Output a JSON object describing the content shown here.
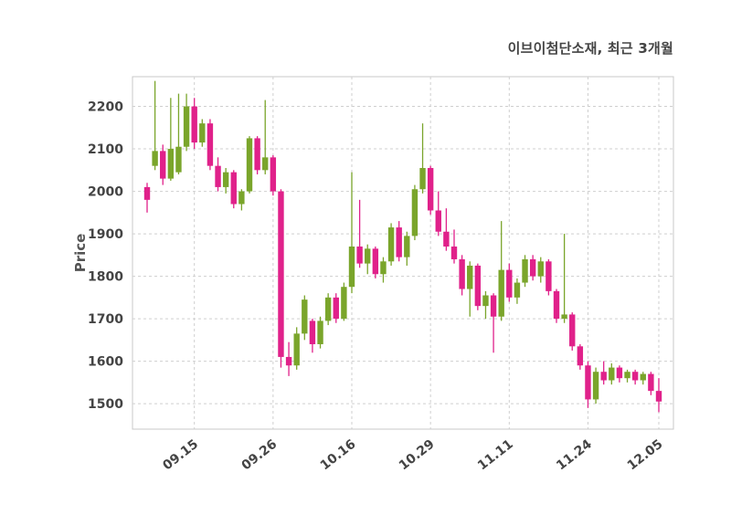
{
  "chart_data": {
    "type": "candlestick",
    "title": "이브이첨단소재, 최근 3개월",
    "xlabel": "",
    "ylabel": "Price",
    "ylim": [
      1440,
      2270
    ],
    "grid": true,
    "legend": "none",
    "yticks": [
      1500,
      1600,
      1700,
      1800,
      1900,
      2000,
      2100,
      2200
    ],
    "xticks": [
      {
        "index": 6,
        "label": "09.15"
      },
      {
        "index": 16,
        "label": "09.26"
      },
      {
        "index": 26,
        "label": "10.16"
      },
      {
        "index": 36,
        "label": "10.29"
      },
      {
        "index": 46,
        "label": "11.11"
      },
      {
        "index": 56,
        "label": "11.24"
      },
      {
        "index": 65,
        "label": "12.05"
      }
    ],
    "up_color": "#7aa52b",
    "down_color": "#e0218a",
    "grid_color": "#cfcfcf",
    "border_color": "#c8c8c8",
    "tick_color": "#444444",
    "candles_format": "[open, high, low, close]",
    "candles": [
      [
        2010,
        2020,
        1950,
        1980
      ],
      [
        2060,
        2260,
        2050,
        2095
      ],
      [
        2095,
        2110,
        2015,
        2030
      ],
      [
        2030,
        2220,
        2025,
        2100
      ],
      [
        2045,
        2230,
        2040,
        2105
      ],
      [
        2105,
        2230,
        2095,
        2200
      ],
      [
        2200,
        2220,
        2100,
        2115
      ],
      [
        2115,
        2170,
        2105,
        2160
      ],
      [
        2160,
        2170,
        2050,
        2060
      ],
      [
        2060,
        2080,
        2000,
        2010
      ],
      [
        2010,
        2055,
        1995,
        2045
      ],
      [
        2045,
        2050,
        1960,
        1970
      ],
      [
        1970,
        2005,
        1955,
        2000
      ],
      [
        2000,
        2130,
        1995,
        2125
      ],
      [
        2125,
        2130,
        2040,
        2050
      ],
      [
        2050,
        2215,
        2040,
        2080
      ],
      [
        2080,
        2085,
        1990,
        2000
      ],
      [
        2000,
        2005,
        1585,
        1610
      ],
      [
        1610,
        1645,
        1565,
        1590
      ],
      [
        1590,
        1680,
        1580,
        1665
      ],
      [
        1665,
        1755,
        1650,
        1745
      ],
      [
        1695,
        1700,
        1620,
        1640
      ],
      [
        1640,
        1705,
        1630,
        1695
      ],
      [
        1695,
        1760,
        1685,
        1750
      ],
      [
        1750,
        1760,
        1690,
        1700
      ],
      [
        1700,
        1785,
        1695,
        1775
      ],
      [
        1775,
        2045,
        1760,
        1870
      ],
      [
        1870,
        1980,
        1820,
        1830
      ],
      [
        1830,
        1875,
        1805,
        1865
      ],
      [
        1865,
        1870,
        1795,
        1805
      ],
      [
        1805,
        1845,
        1785,
        1835
      ],
      [
        1835,
        1925,
        1825,
        1915
      ],
      [
        1915,
        1930,
        1835,
        1845
      ],
      [
        1845,
        1905,
        1825,
        1895
      ],
      [
        1895,
        2015,
        1885,
        2005
      ],
      [
        2005,
        2160,
        1995,
        2055
      ],
      [
        2055,
        2060,
        1945,
        1955
      ],
      [
        1955,
        2000,
        1895,
        1905
      ],
      [
        1905,
        1960,
        1860,
        1870
      ],
      [
        1870,
        1910,
        1830,
        1840
      ],
      [
        1840,
        1850,
        1755,
        1770
      ],
      [
        1770,
        1835,
        1705,
        1825
      ],
      [
        1825,
        1830,
        1720,
        1730
      ],
      [
        1730,
        1765,
        1700,
        1755
      ],
      [
        1755,
        1760,
        1620,
        1705
      ],
      [
        1705,
        1930,
        1695,
        1815
      ],
      [
        1815,
        1830,
        1740,
        1750
      ],
      [
        1750,
        1795,
        1735,
        1785
      ],
      [
        1785,
        1850,
        1775,
        1840
      ],
      [
        1840,
        1850,
        1790,
        1800
      ],
      [
        1800,
        1845,
        1785,
        1835
      ],
      [
        1835,
        1840,
        1755,
        1765
      ],
      [
        1765,
        1770,
        1690,
        1700
      ],
      [
        1700,
        1900,
        1690,
        1710
      ],
      [
        1710,
        1715,
        1625,
        1635
      ],
      [
        1635,
        1640,
        1580,
        1590
      ],
      [
        1590,
        1600,
        1490,
        1510
      ],
      [
        1510,
        1585,
        1500,
        1575
      ],
      [
        1575,
        1600,
        1545,
        1555
      ],
      [
        1555,
        1595,
        1545,
        1585
      ],
      [
        1585,
        1590,
        1550,
        1560
      ],
      [
        1560,
        1580,
        1550,
        1575
      ],
      [
        1575,
        1580,
        1545,
        1555
      ],
      [
        1555,
        1575,
        1545,
        1570
      ],
      [
        1570,
        1575,
        1520,
        1530
      ],
      [
        1530,
        1560,
        1480,
        1505
      ]
    ]
  }
}
